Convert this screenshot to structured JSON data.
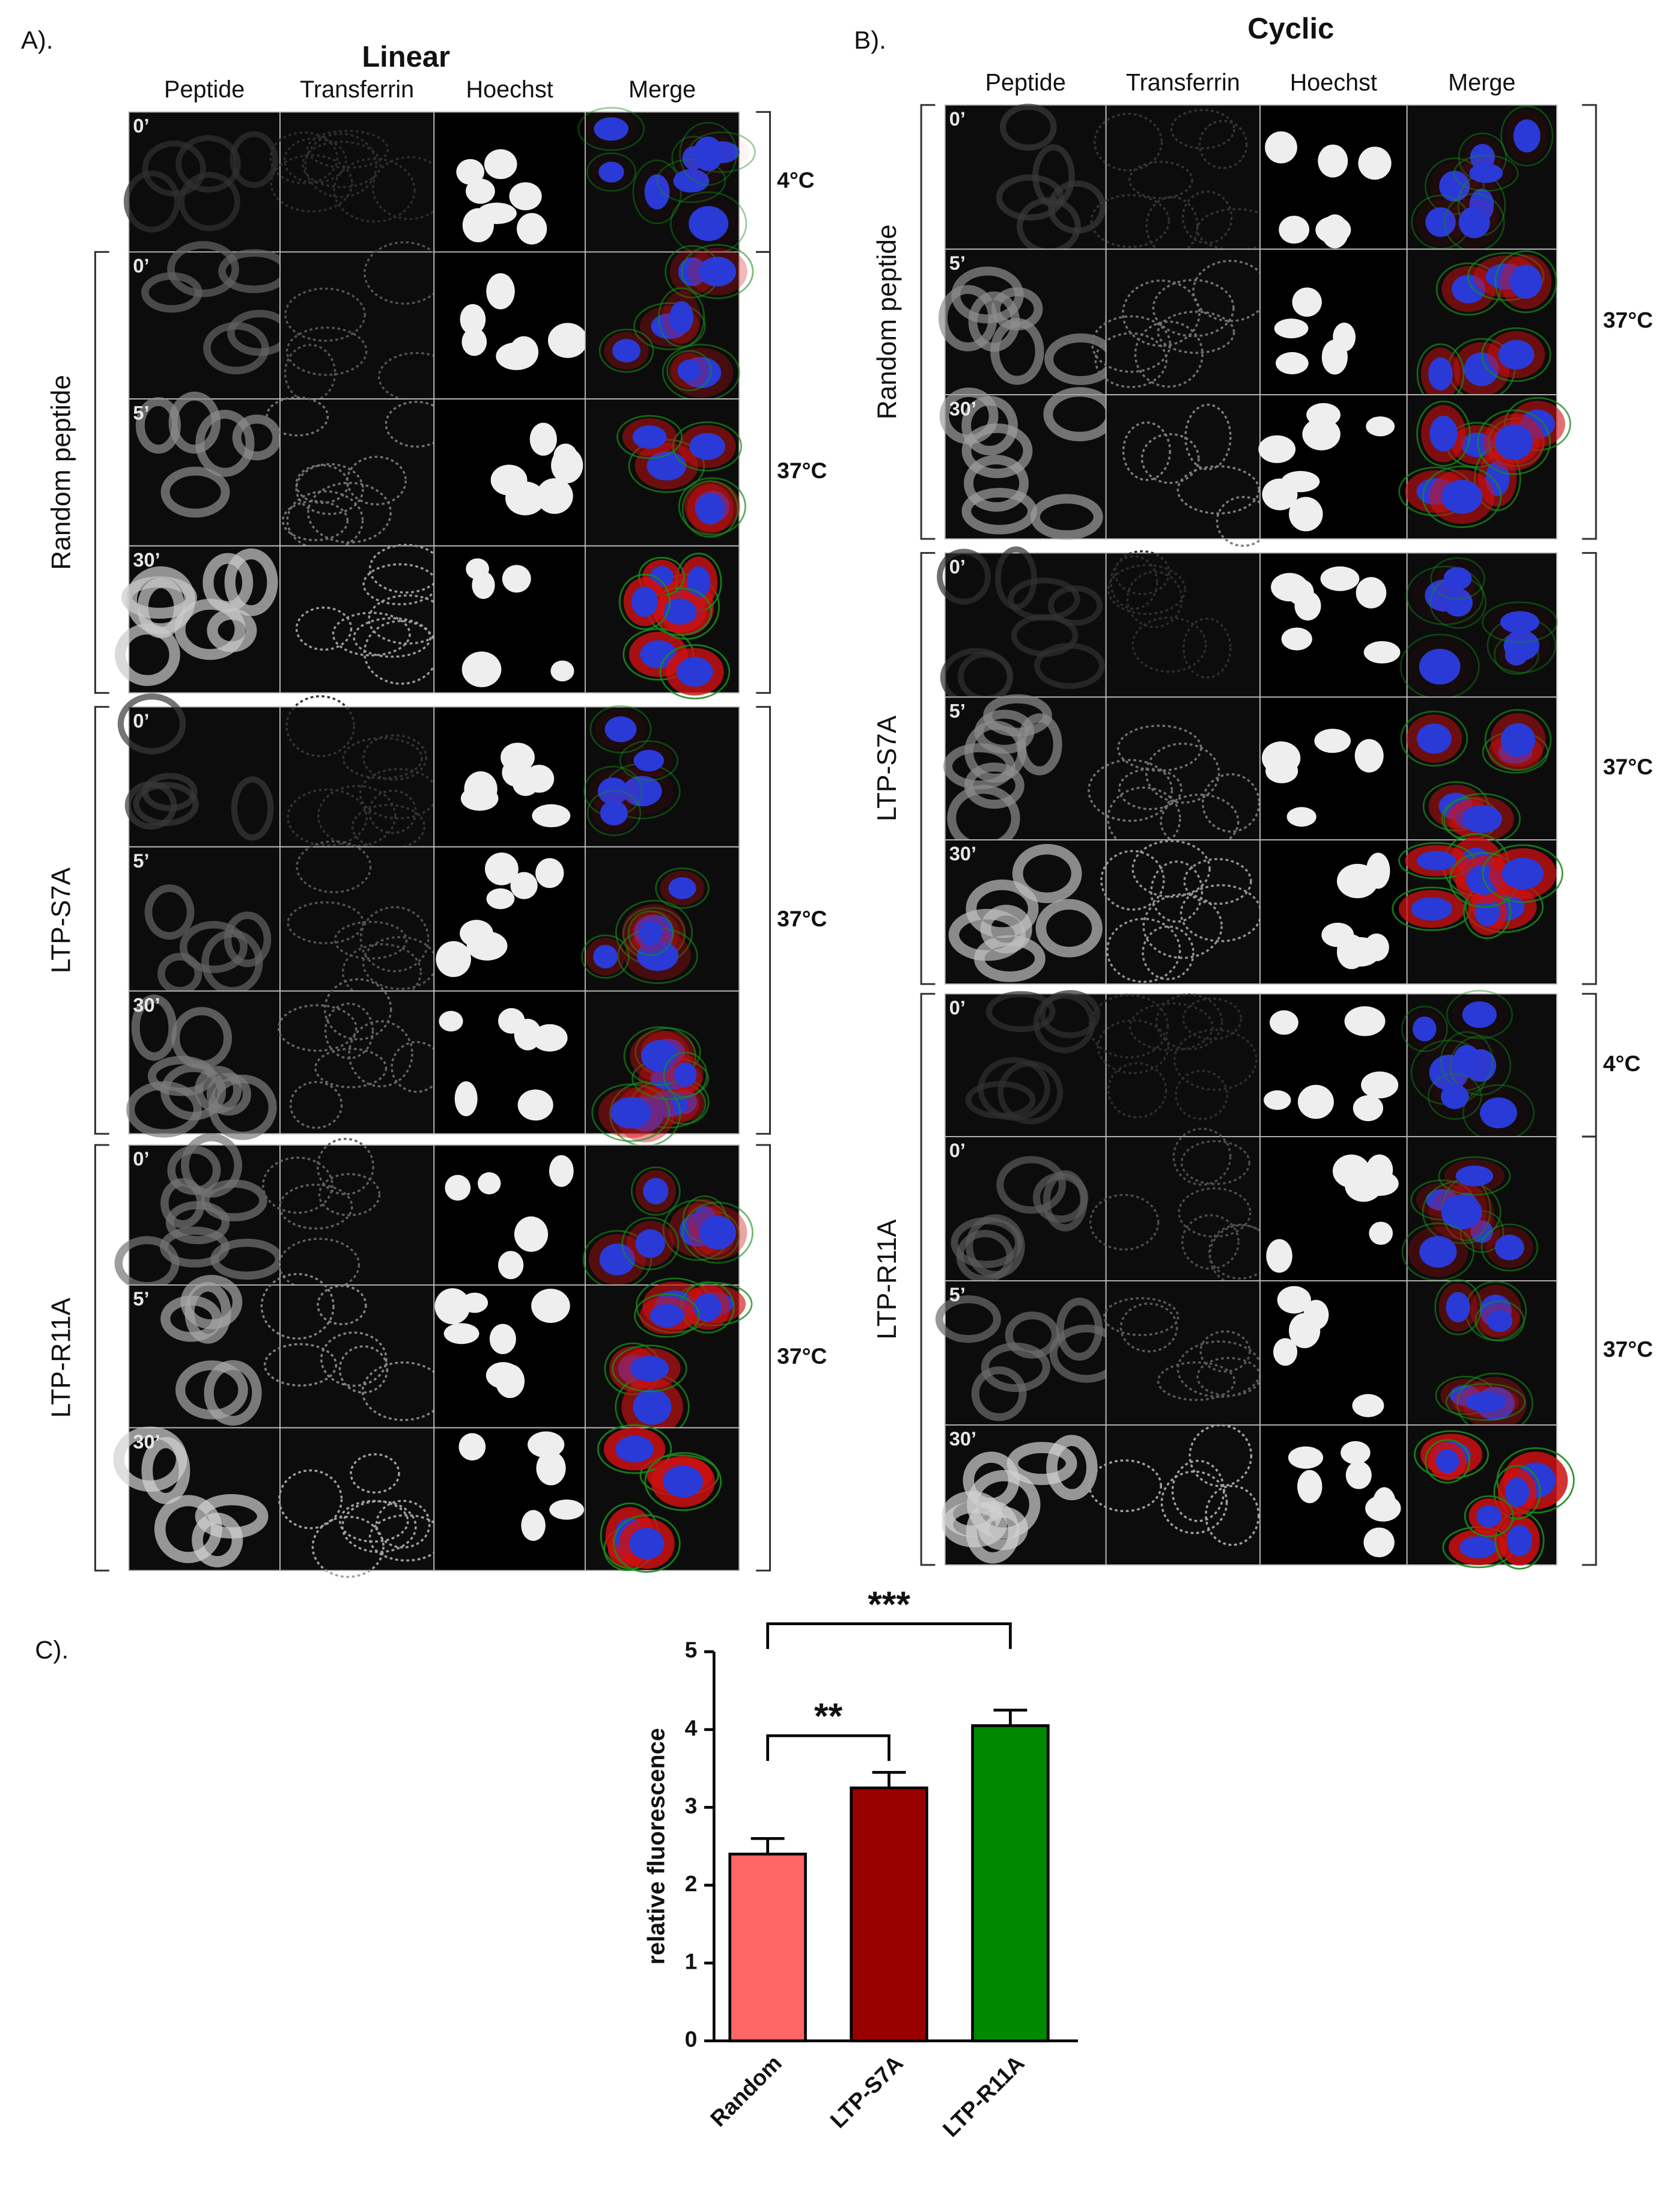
{
  "panel_a": {
    "label": "A).",
    "title": "Linear",
    "columns": [
      "Peptide",
      "Transferrin",
      "Hoechst",
      "Merge"
    ],
    "time_labels": [
      "0’",
      "0’",
      "5’",
      "30’",
      "0’",
      "5’",
      "30’",
      "0’",
      "5’",
      "30’"
    ],
    "groups": [
      "Random peptide",
      "LTP-S7A",
      "LTP-R11A"
    ],
    "temperatures": [
      "4°C",
      "37°C",
      "37°C",
      "37°C"
    ]
  },
  "panel_b": {
    "label": "B).",
    "title": "Cyclic",
    "columns": [
      "Peptide",
      "Transferrin",
      "Hoechst",
      "Merge"
    ],
    "time_labels": [
      "0’",
      "5’",
      "30’",
      "0’",
      "5’",
      "30’",
      "0’",
      "0’",
      "5’",
      "30’"
    ],
    "groups": [
      "Random peptide",
      "LTP-S7A",
      "LTP-R11A"
    ],
    "temperatures": [
      "37°C",
      "37°C",
      "4°C",
      "37°C"
    ]
  },
  "chart_data": {
    "type": "bar",
    "label": "C).",
    "y_label": "relative fluorescence",
    "categories": [
      "Random",
      "LTP-S7A",
      "LTP-R11A"
    ],
    "values": [
      2.4,
      3.25,
      4.05
    ],
    "errors": [
      0.2,
      0.2,
      0.2
    ],
    "colors": [
      "#ff6666",
      "#990000",
      "#008800"
    ],
    "ylim": [
      0,
      5
    ],
    "yticks": [
      0,
      1,
      2,
      3,
      4,
      5
    ],
    "comparisons": [
      {
        "label": "**",
        "categories": [
          "Random",
          "LTP-S7A"
        ]
      },
      {
        "label": "***",
        "categories": [
          "Random",
          "LTP-R11A"
        ]
      }
    ]
  }
}
